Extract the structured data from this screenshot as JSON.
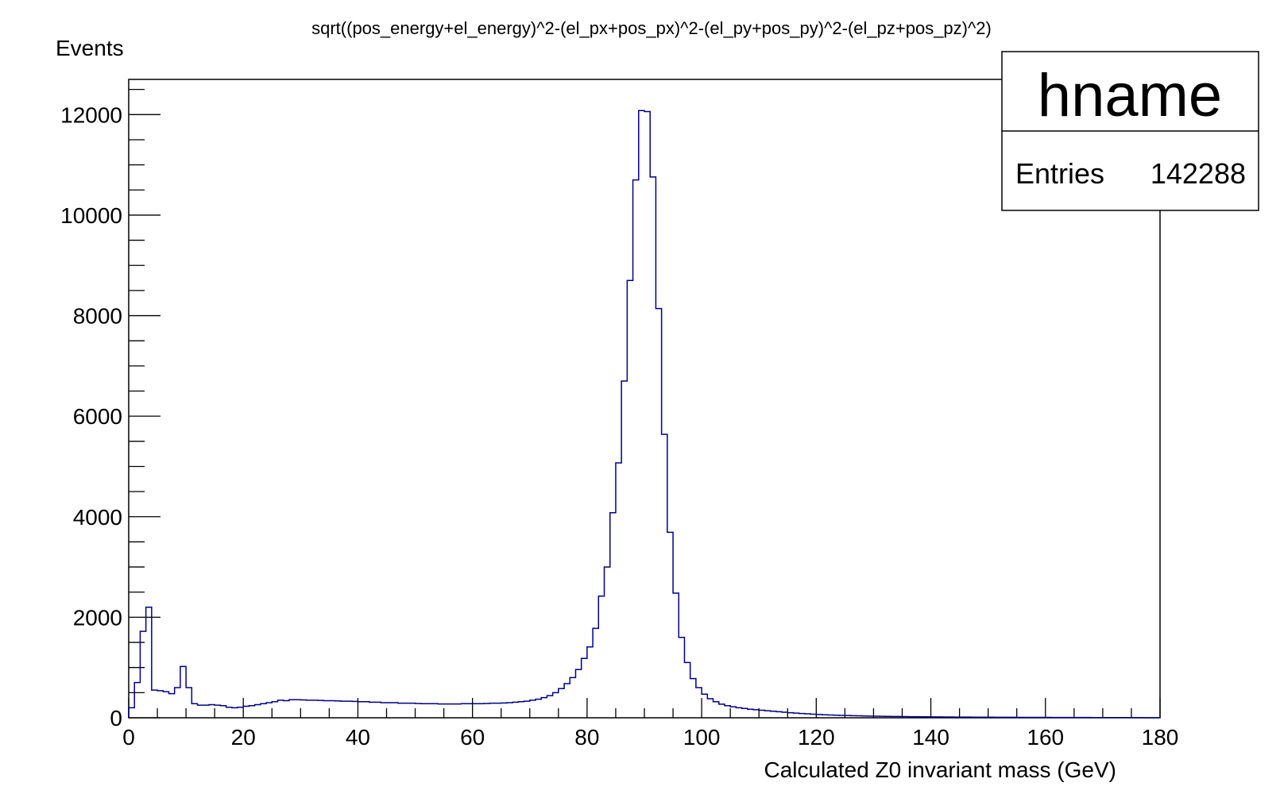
{
  "chart_data": {
    "type": "bar",
    "title": "sqrt((pos_energy+el_energy)^2-(el_px+pos_px)^2-(el_py+pos_py)^2-(el_pz+pos_pz)^2)",
    "xlabel": "Calculated Z0 invariant mass (GeV)",
    "ylabel": "Events",
    "xlim": [
      0,
      180
    ],
    "ylim": [
      0,
      12700
    ],
    "x_ticks": [
      0,
      20,
      40,
      60,
      80,
      100,
      120,
      140,
      160,
      180
    ],
    "y_ticks": [
      0,
      2000,
      4000,
      6000,
      8000,
      10000,
      12000
    ],
    "grid": false,
    "line_color": "#00008b",
    "bin_width": 1,
    "bin_start": 0,
    "values": [
      200,
      700,
      1720,
      2200,
      550,
      540,
      520,
      480,
      600,
      1020,
      600,
      280,
      250,
      250,
      260,
      250,
      240,
      210,
      200,
      210,
      230,
      240,
      260,
      280,
      300,
      320,
      350,
      340,
      360,
      360,
      355,
      350,
      350,
      345,
      340,
      340,
      335,
      330,
      330,
      325,
      320,
      320,
      310,
      310,
      300,
      300,
      300,
      290,
      290,
      290,
      285,
      280,
      280,
      280,
      275,
      275,
      275,
      275,
      280,
      280,
      280,
      280,
      285,
      290,
      290,
      295,
      300,
      310,
      320,
      330,
      350,
      370,
      400,
      440,
      500,
      580,
      680,
      800,
      960,
      1180,
      1410,
      1780,
      2420,
      3000,
      4080,
      5070,
      6700,
      8700,
      10700,
      12080,
      12060,
      10760,
      8140,
      5640,
      3690,
      2480,
      1600,
      1100,
      780,
      600,
      470,
      380,
      320,
      270,
      240,
      220,
      200,
      185,
      170,
      160,
      150,
      140,
      130,
      120,
      110,
      100,
      92,
      85,
      78,
      72,
      66,
      60,
      56,
      52,
      48,
      45,
      42,
      39,
      36,
      34,
      32,
      30,
      28,
      26,
      25,
      24,
      22,
      21,
      20,
      19,
      18,
      17,
      16,
      15,
      14,
      14,
      13,
      12,
      12,
      11,
      11,
      10,
      10,
      9,
      9,
      8,
      8,
      8,
      7,
      7,
      7,
      6,
      6,
      6,
      5,
      5,
      5,
      5,
      4,
      4,
      4,
      4,
      3,
      3,
      3,
      3,
      3,
      2,
      2,
      2
    ]
  },
  "stats": {
    "name": "hname",
    "entries_label": "Entries",
    "entries_value": "142288"
  }
}
